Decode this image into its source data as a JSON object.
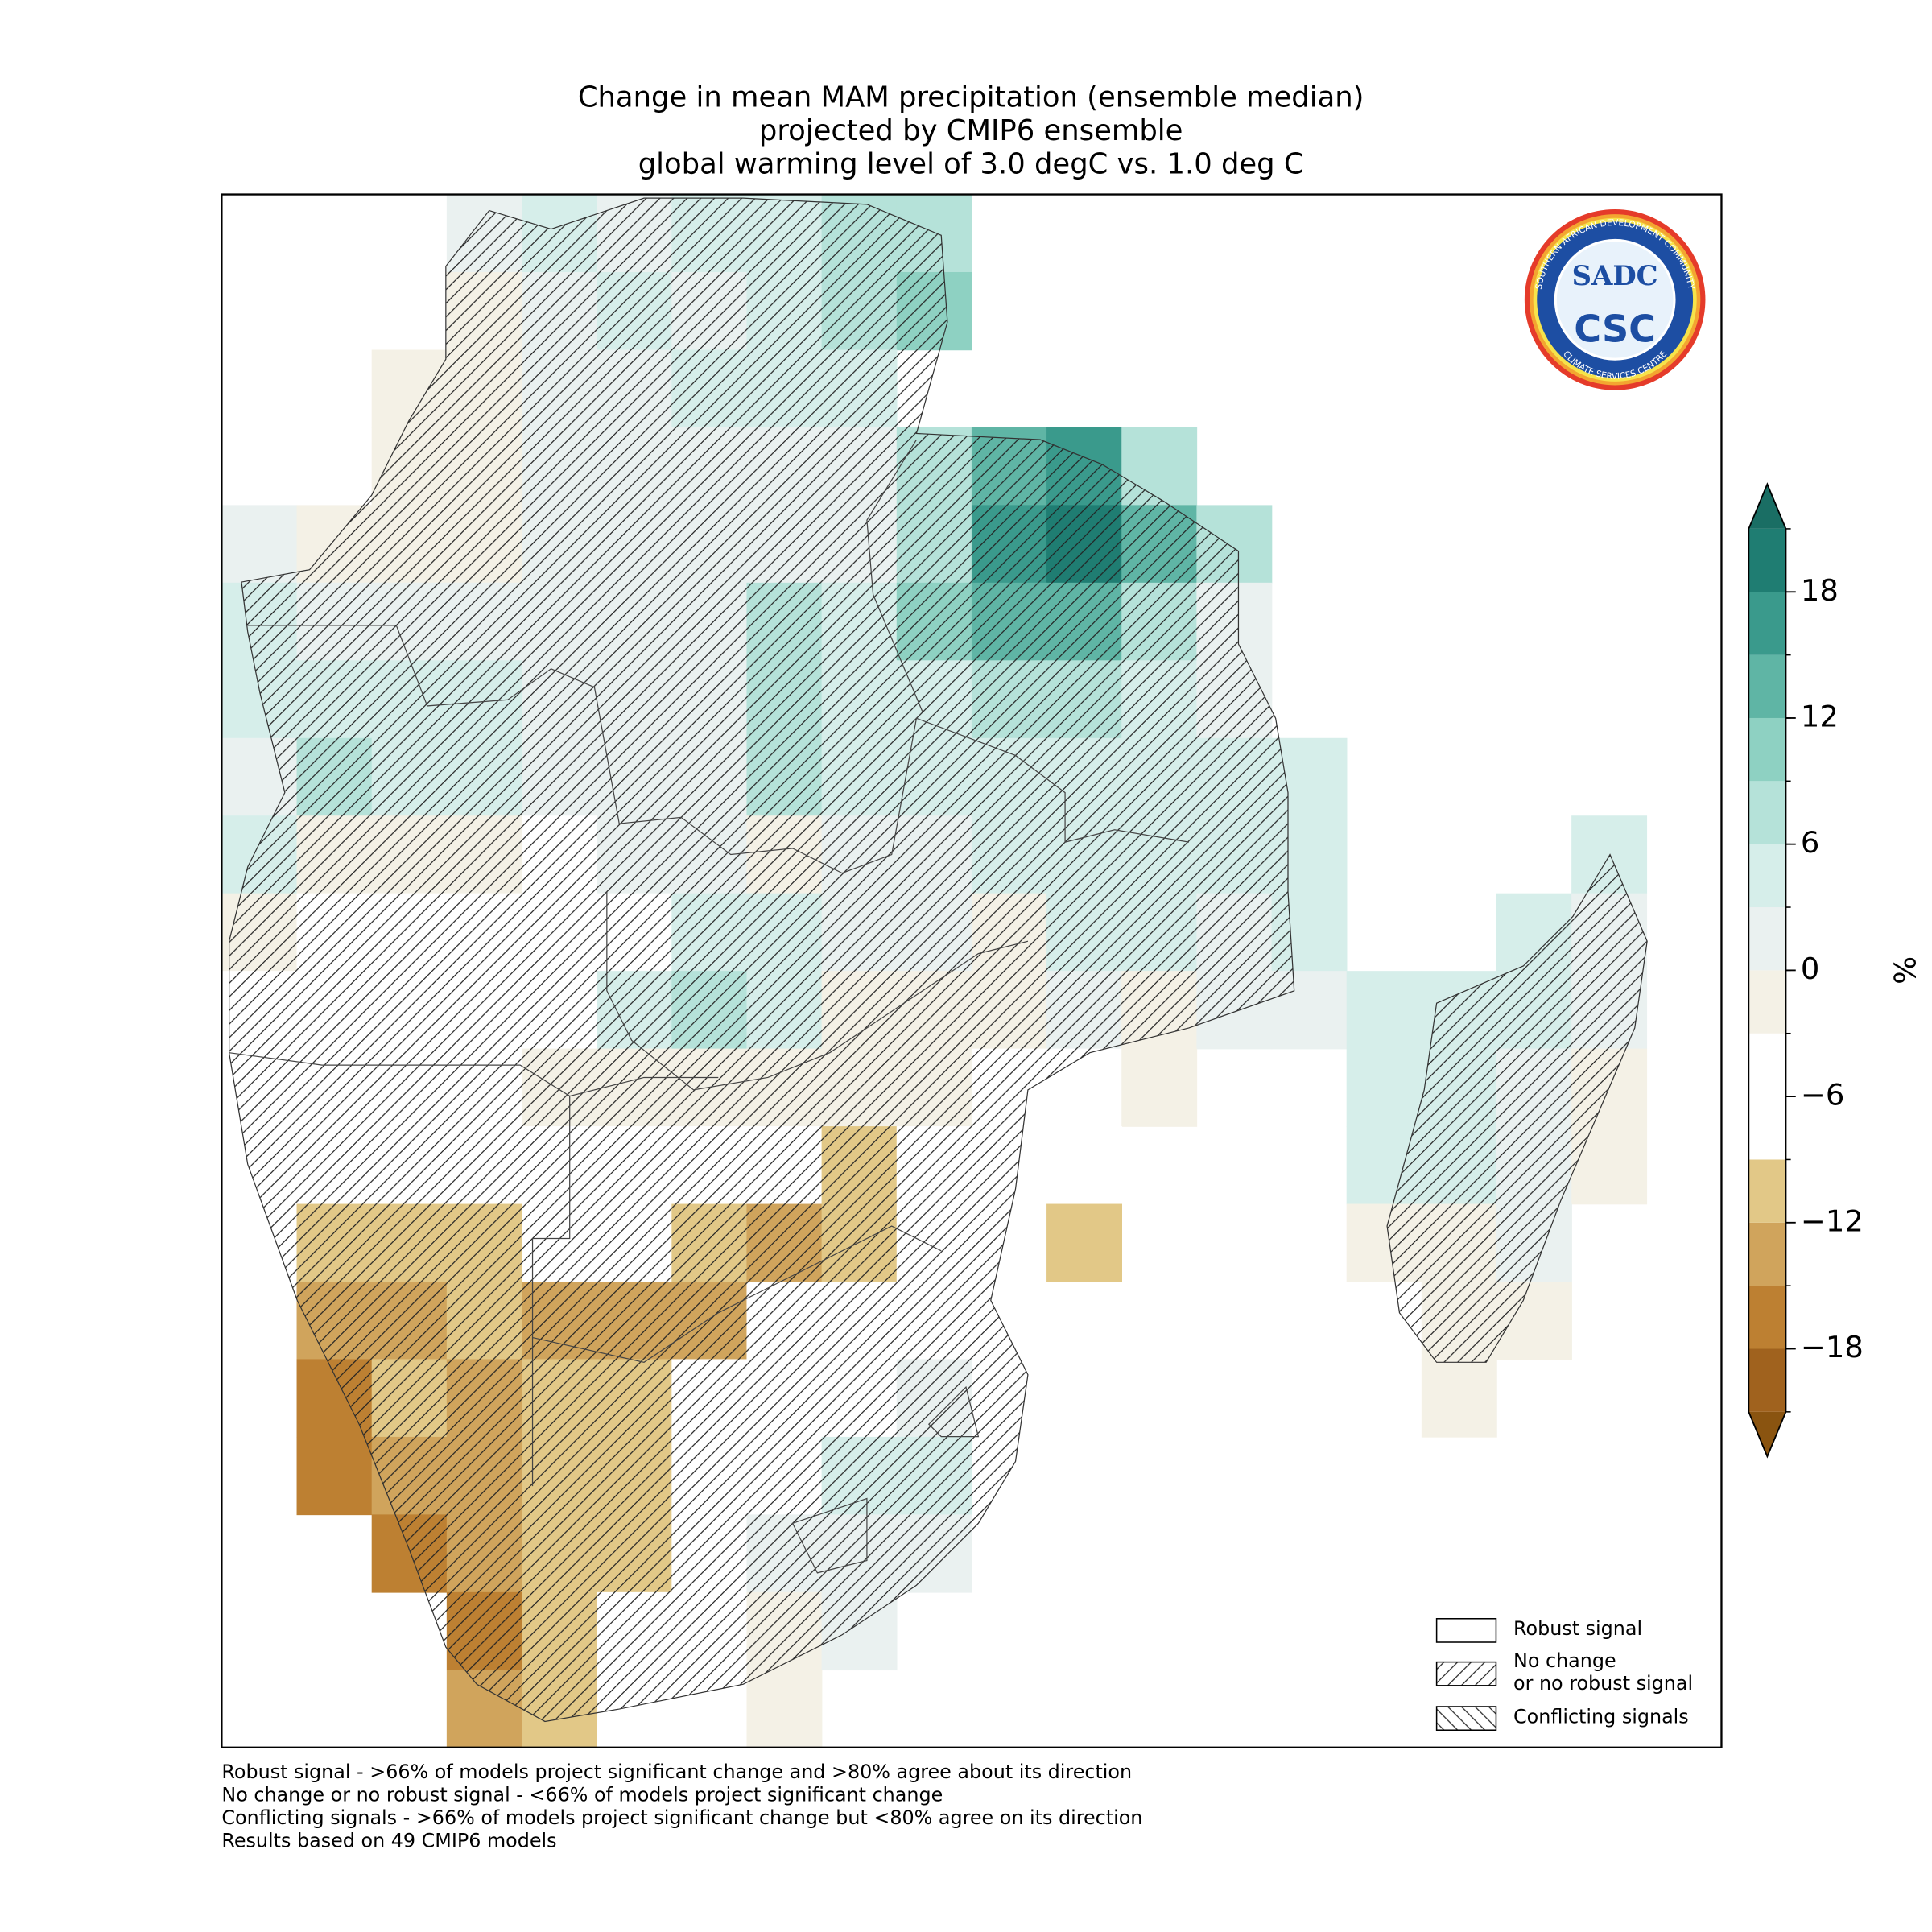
{
  "chart_data": {
    "type": "map",
    "title": [
      "Change in mean MAM precipitation (ensemble median)",
      "projected by CMIP6 ensemble",
      "global warming level of 3.0 degC vs. 1.0 deg C"
    ],
    "colorbar": {
      "label": "%",
      "lim": [
        -21,
        21
      ],
      "ticks": [
        {
          "value": -18,
          "label": "−18"
        },
        {
          "value": -12,
          "label": "−12"
        },
        {
          "value": -6,
          "label": "−6"
        },
        0,
        6,
        12,
        18
      ],
      "levels": [
        -21,
        -18,
        -15,
        -12,
        -9,
        -6,
        -3,
        0,
        3,
        6,
        9,
        12,
        15,
        18,
        21
      ],
      "colors": [
        "#a0621e",
        "#bd8032",
        "#d0a45c",
        "#e2c887",
        "#ffffff",
        "#ffffff",
        "#f4f1e6",
        "#eaf1f0",
        "#d6eeea",
        "#b5e2d9",
        "#8ed1c2",
        "#5fb5a5",
        "#3a9a8c",
        "#1f7d72"
      ],
      "under_color": "#8a5410",
      "over_color": "#1a6e64"
    },
    "grid": {
      "values": [
        [
          null,
          null,
          null,
          1,
          4,
          2,
          3,
          4,
          6,
          8,
          null,
          null,
          null,
          null,
          null,
          null,
          null,
          null,
          null,
          null
        ],
        [
          null,
          null,
          null,
          -1,
          2,
          3,
          2,
          5,
          6,
          9,
          null,
          null,
          null,
          null,
          null,
          null,
          null,
          null,
          null,
          null
        ],
        [
          null,
          null,
          -1,
          -1,
          1,
          2,
          4,
          3,
          5,
          null,
          null,
          null,
          null,
          null,
          null,
          null,
          null,
          null,
          null,
          null
        ],
        [
          null,
          null,
          -1,
          -1,
          1,
          2,
          2,
          2,
          1,
          8,
          14,
          16,
          7,
          null,
          null,
          null,
          null,
          null,
          null,
          null
        ],
        [
          1,
          -1,
          -1,
          -2,
          1,
          1,
          2,
          2,
          2,
          8,
          16,
          19,
          12,
          6,
          null,
          null,
          null,
          null,
          null,
          null
        ],
        [
          3,
          1,
          1,
          2,
          2,
          1,
          2,
          6,
          4,
          9,
          13,
          14,
          8,
          2,
          null,
          null,
          null,
          null,
          null,
          null
        ],
        [
          3,
          4,
          5,
          4,
          2,
          1,
          2,
          6,
          5,
          5,
          8,
          8,
          5,
          2,
          null,
          null,
          null,
          null,
          null,
          null
        ],
        [
          2,
          6,
          3,
          4,
          1,
          1,
          2,
          6,
          3,
          3,
          4,
          4,
          3,
          3,
          4,
          null,
          null,
          null,
          null,
          null
        ],
        [
          5,
          -1,
          -1,
          -2,
          -4,
          1,
          1,
          -1,
          1,
          1,
          4,
          5,
          4,
          3,
          3,
          null,
          null,
          null,
          4,
          null
        ],
        [
          -1,
          -4,
          -4,
          -4,
          -4,
          -4,
          4,
          3,
          1,
          1,
          -1,
          3,
          5,
          2,
          3,
          null,
          null,
          3,
          2,
          null
        ],
        [
          -4,
          -4,
          -4,
          -4,
          -4,
          4,
          7,
          3,
          -1,
          -1,
          -1,
          1,
          -1,
          1,
          1,
          3,
          3,
          4,
          1,
          null
        ],
        [
          -4,
          -4,
          -4,
          -4,
          -2,
          -2,
          -1,
          -1,
          -2,
          -1,
          -4,
          -4,
          -2,
          null,
          null,
          4,
          3,
          2,
          -1,
          null
        ],
        [
          null,
          -4,
          -7,
          -8,
          -4,
          -5,
          -4,
          -4,
          -10,
          -4,
          -4,
          -4,
          null,
          null,
          null,
          4,
          3,
          1,
          -1,
          null
        ],
        [
          null,
          -10,
          -12,
          -11,
          -5,
          -4,
          -10,
          -14,
          -11,
          -4,
          -4,
          -10,
          null,
          null,
          null,
          -1,
          -1,
          1,
          null,
          null
        ],
        [
          null,
          -14,
          -15,
          -12,
          -14,
          -13,
          -13,
          -4,
          -4,
          -4,
          -4,
          null,
          null,
          null,
          null,
          null,
          -1,
          -1,
          null,
          null
        ],
        [
          null,
          -16,
          -12,
          -14,
          -12,
          -12,
          -4,
          -4,
          -4,
          1,
          null,
          null,
          null,
          null,
          null,
          null,
          -1,
          null,
          null,
          null
        ],
        [
          null,
          -16,
          -14,
          -13,
          -12,
          -11,
          -4,
          -4,
          3,
          3,
          null,
          null,
          null,
          null,
          null,
          null,
          null,
          null,
          null,
          null
        ],
        [
          null,
          null,
          -18,
          -13,
          -11,
          -11,
          -4,
          1,
          2,
          1,
          null,
          null,
          null,
          null,
          null,
          null,
          null,
          null,
          null,
          null
        ],
        [
          null,
          null,
          null,
          -16,
          -11,
          -4,
          -4,
          -1,
          1,
          null,
          null,
          null,
          null,
          null,
          null,
          null,
          null,
          null,
          null,
          null
        ],
        [
          null,
          null,
          null,
          -14,
          -11,
          -4,
          -4,
          -1,
          null,
          null,
          null,
          null,
          null,
          null,
          null,
          null,
          null,
          null,
          null,
          null
        ]
      ]
    },
    "legend": [
      {
        "lines": [
          "Robust signal"
        ],
        "hatch": "none"
      },
      {
        "lines": [
          "No change",
          "or no robust signal"
        ],
        "hatch": "forward"
      },
      {
        "lines": [
          "Conflicting signals"
        ],
        "hatch": "back"
      }
    ],
    "notes": [
      "Robust signal - >66% of models project significant change and >80% agree about its direction",
      "No change or no robust signal - <66% of models project significant change",
      "Conflicting signals - >66% of models project significant change but <80% agree on its direction",
      "Results based on 49 CMIP6 models"
    ],
    "logo": {
      "text": "CSC",
      "mark": "SADC",
      "ring_top": "SOUTHERN AFRICAN DEVELOPMENT COMMUNITY",
      "ring_bottom": "CLIMATE SERVICES CENTRE"
    }
  }
}
